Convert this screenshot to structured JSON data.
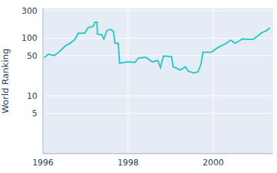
{
  "chart_data": {
    "type": "line",
    "y_label": "World Ranking",
    "x": [
      1996.03,
      1996.13,
      1996.26,
      1996.37,
      1996.54,
      1996.62,
      1996.75,
      1996.83,
      1996.98,
      1997.06,
      1997.19,
      1997.22,
      1997.27,
      1997.28,
      1997.38,
      1997.43,
      1997.5,
      1997.59,
      1997.66,
      1997.69,
      1997.77,
      1997.8,
      1998.0,
      1998.16,
      1998.24,
      1998.41,
      1998.57,
      1998.7,
      1998.76,
      1998.83,
      1999.02,
      1999.06,
      1999.15,
      1999.22,
      1999.35,
      1999.41,
      1999.54,
      1999.64,
      1999.71,
      1999.76,
      1999.95,
      2000.11,
      2000.28,
      2000.41,
      2000.52,
      2000.63,
      2000.68,
      2000.93,
      2001.04,
      2001.14,
      2001.25,
      2001.33
    ],
    "values": [
      46,
      53,
      50,
      57,
      75,
      80,
      95,
      122,
      122,
      152,
      162,
      190,
      190,
      118,
      115,
      97,
      135,
      143,
      130,
      82,
      82,
      37,
      39,
      38,
      45,
      47,
      39,
      41,
      31,
      49,
      48,
      32,
      30,
      28,
      32,
      27,
      25,
      26,
      35,
      57,
      57,
      69,
      80,
      92,
      82,
      92,
      97,
      95,
      108,
      125,
      135,
      152
    ],
    "color": "#1fc9c9",
    "xlim": [
      1996,
      2001.4
    ],
    "xticks": [
      1996,
      1998,
      2000
    ],
    "ylim": [
      1,
      330
    ],
    "yticks": [
      5,
      10,
      50,
      100,
      300
    ],
    "log": "y",
    "grid": true
  }
}
